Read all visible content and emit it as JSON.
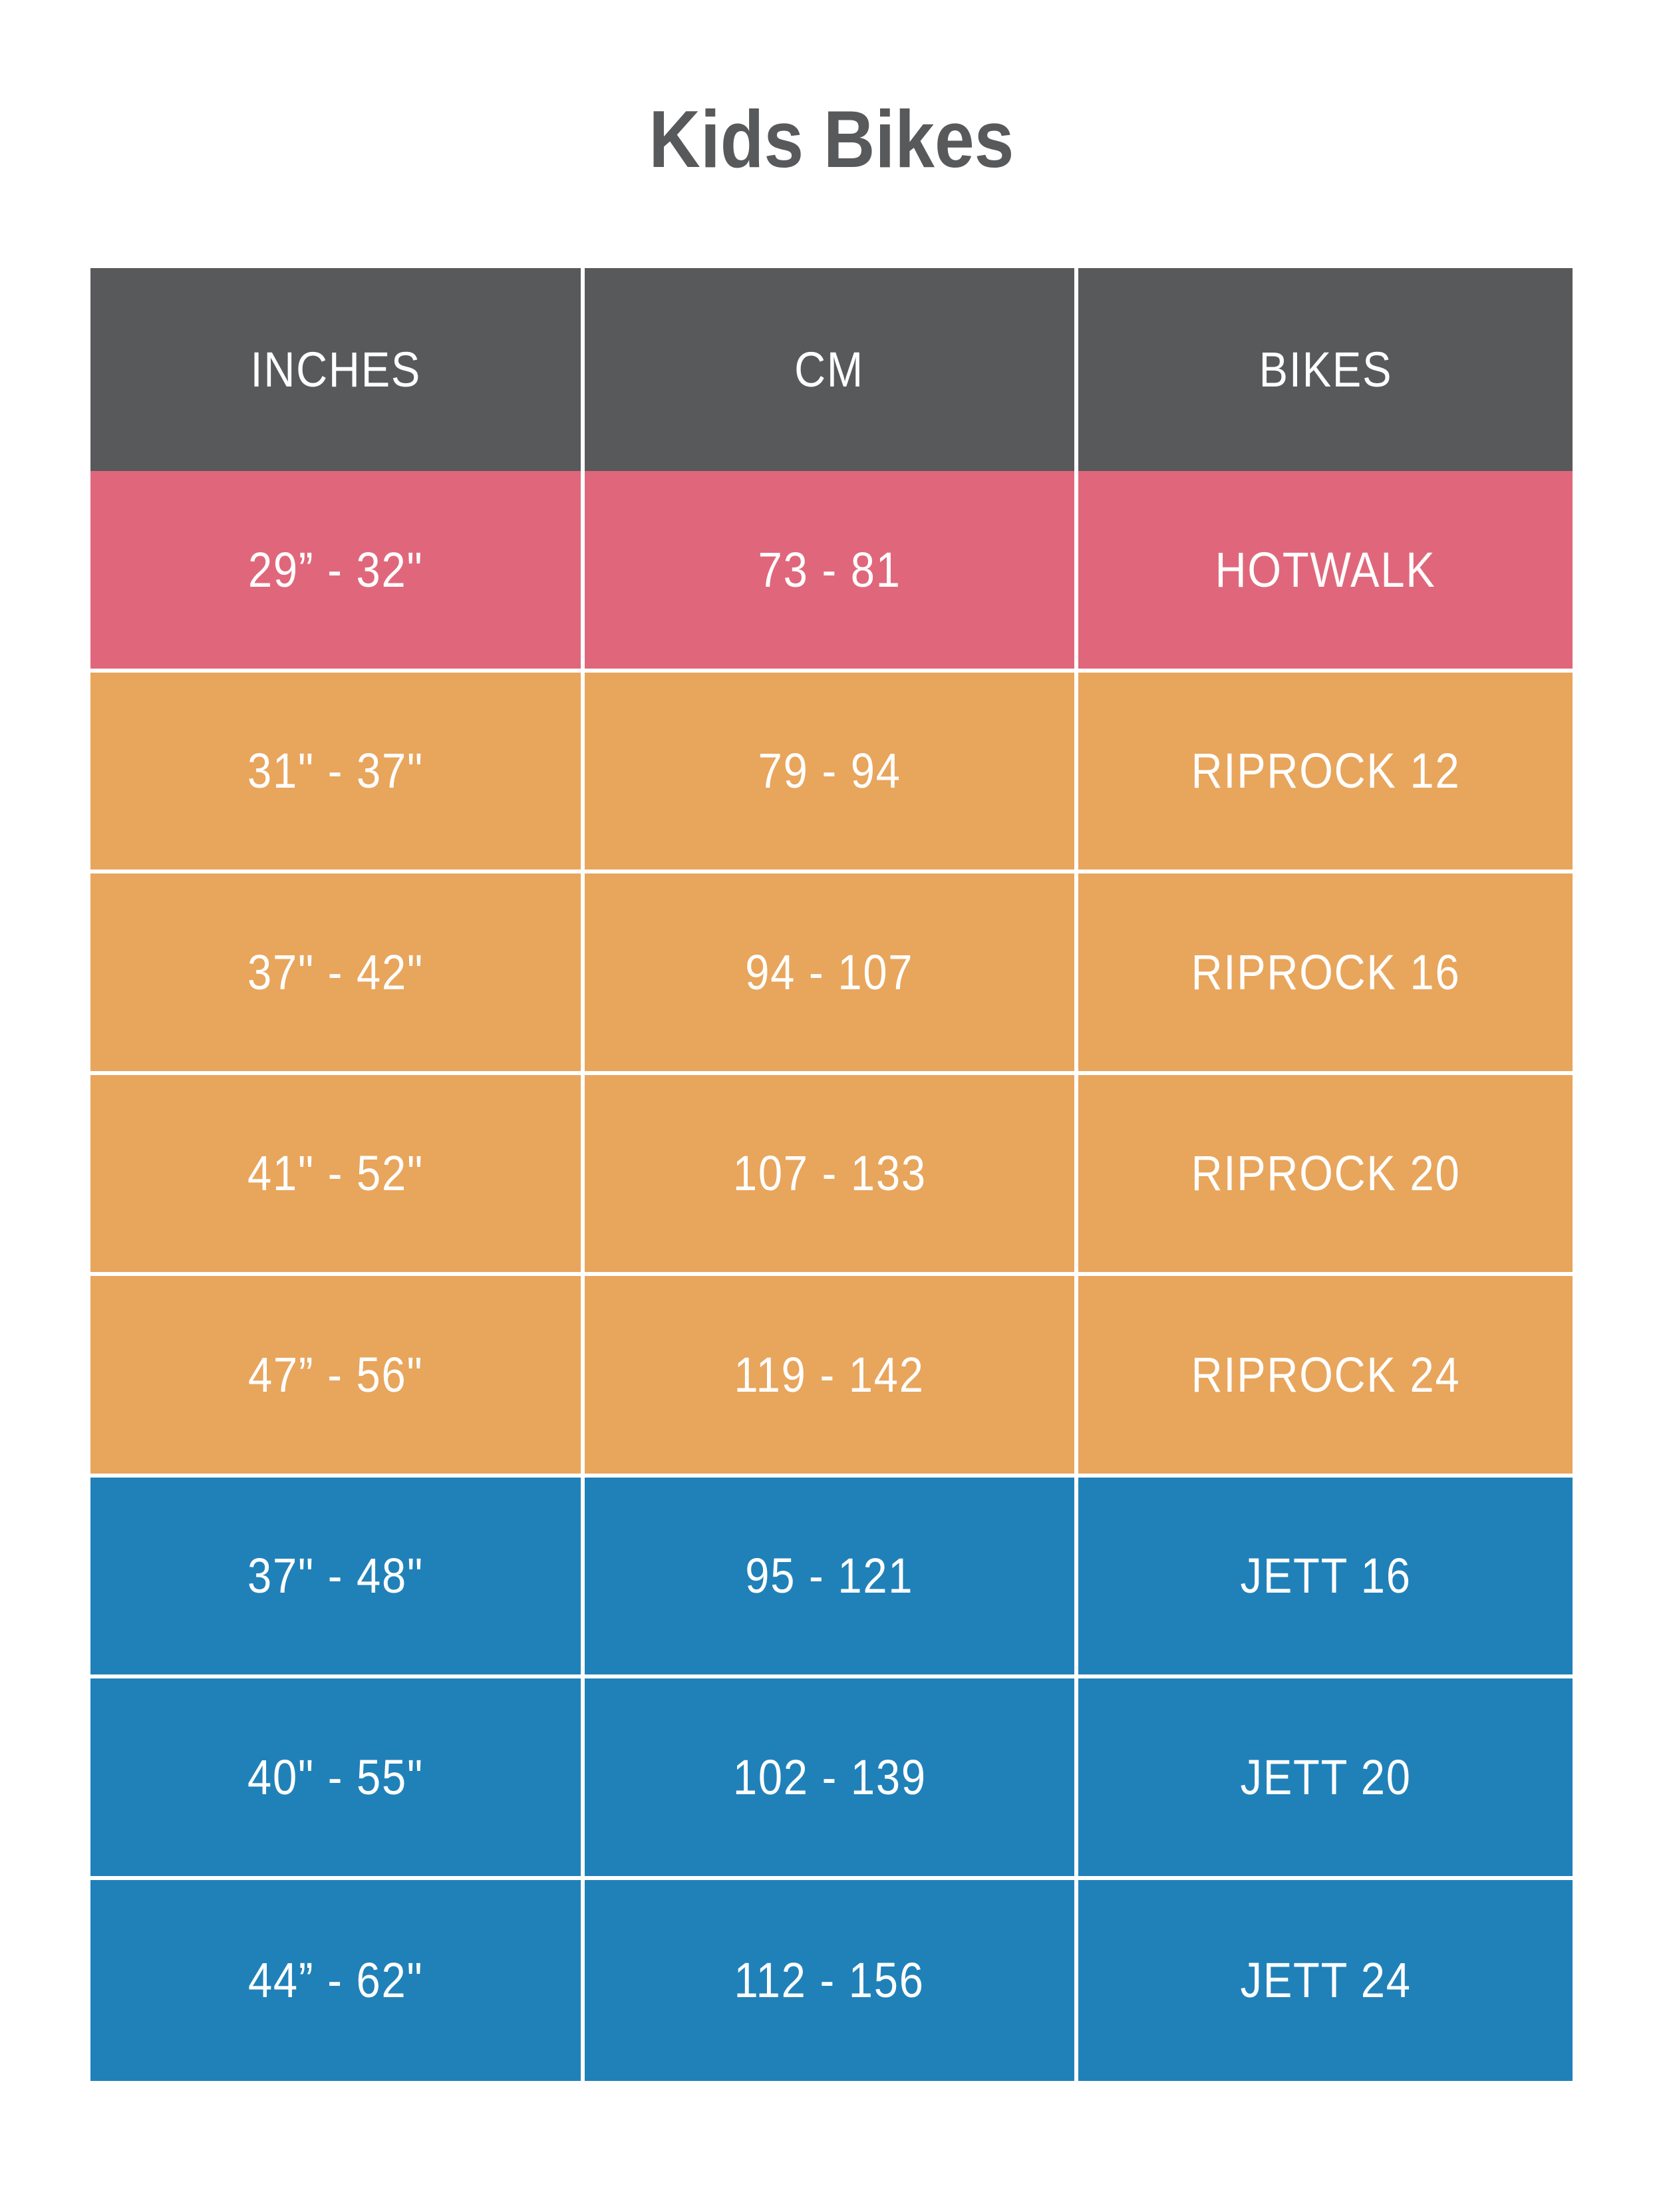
{
  "title": "Kids Bikes",
  "colors": {
    "title_text": "#58595B",
    "header_bg": "#58595B",
    "hotwalk_row_bg": "#E0677B",
    "riprock_row_bg": "#E8A55C",
    "jett_row_bg": "#2081B9",
    "cell_text": "#FFFFFF",
    "divider": "#FFFFFF"
  },
  "table": {
    "headers": [
      "INCHES",
      "CM",
      "BIKES"
    ],
    "rows": [
      {
        "inches": "29” - 32\"",
        "cm": "73 - 81",
        "bike": "HOTWALK",
        "theme": "pink"
      },
      {
        "inches": "31\" - 37\"",
        "cm": "79 - 94",
        "bike": "RIPROCK 12",
        "theme": "orange"
      },
      {
        "inches": "37\" - 42\"",
        "cm": "94 - 107",
        "bike": "RIPROCK 16",
        "theme": "orange"
      },
      {
        "inches": "41\" - 52\"",
        "cm": "107 - 133",
        "bike": "RIPROCK 20",
        "theme": "orange"
      },
      {
        "inches": "47” - 56\"",
        "cm": "119 - 142",
        "bike": "RIPROCK 24",
        "theme": "orange"
      },
      {
        "inches": "37\" - 48\"",
        "cm": "95 - 121",
        "bike": "JETT 16",
        "theme": "blue"
      },
      {
        "inches": "40\" - 55\"",
        "cm": "102 - 139",
        "bike": "JETT 20",
        "theme": "blue"
      },
      {
        "inches": "44” - 62\"",
        "cm": "112 - 156",
        "bike": "JETT 24",
        "theme": "blue"
      }
    ]
  },
  "chart_data": {
    "type": "table",
    "title": "Kids Bikes",
    "columns": [
      "INCHES",
      "CM",
      "BIKES"
    ],
    "rows": [
      [
        "29” - 32\"",
        "73 - 81",
        "HOTWALK"
      ],
      [
        "31\" - 37\"",
        "79 - 94",
        "RIPROCK 12"
      ],
      [
        "37\" - 42\"",
        "94 - 107",
        "RIPROCK 16"
      ],
      [
        "41\" - 52\"",
        "107 - 133",
        "RIPROCK 20"
      ],
      [
        "47” - 56\"",
        "119 - 142",
        "RIPROCK 24"
      ],
      [
        "37\" - 48\"",
        "95 - 121",
        "JETT 16"
      ],
      [
        "40\" - 55\"",
        "102 - 139",
        "JETT 20"
      ],
      [
        "44” - 62\"",
        "112 - 156",
        "JETT 24"
      ]
    ],
    "row_groups": [
      {
        "bikes": [
          "HOTWALK"
        ],
        "color": "#E0677B"
      },
      {
        "bikes": [
          "RIPROCK 12",
          "RIPROCK 16",
          "RIPROCK 20",
          "RIPROCK 24"
        ],
        "color": "#E8A55C"
      },
      {
        "bikes": [
          "JETT 16",
          "JETT 20",
          "JETT 24"
        ],
        "color": "#2081B9"
      }
    ],
    "header_color": "#58595B",
    "grid": "white 6px dividers between cells",
    "legend_position": "none"
  }
}
